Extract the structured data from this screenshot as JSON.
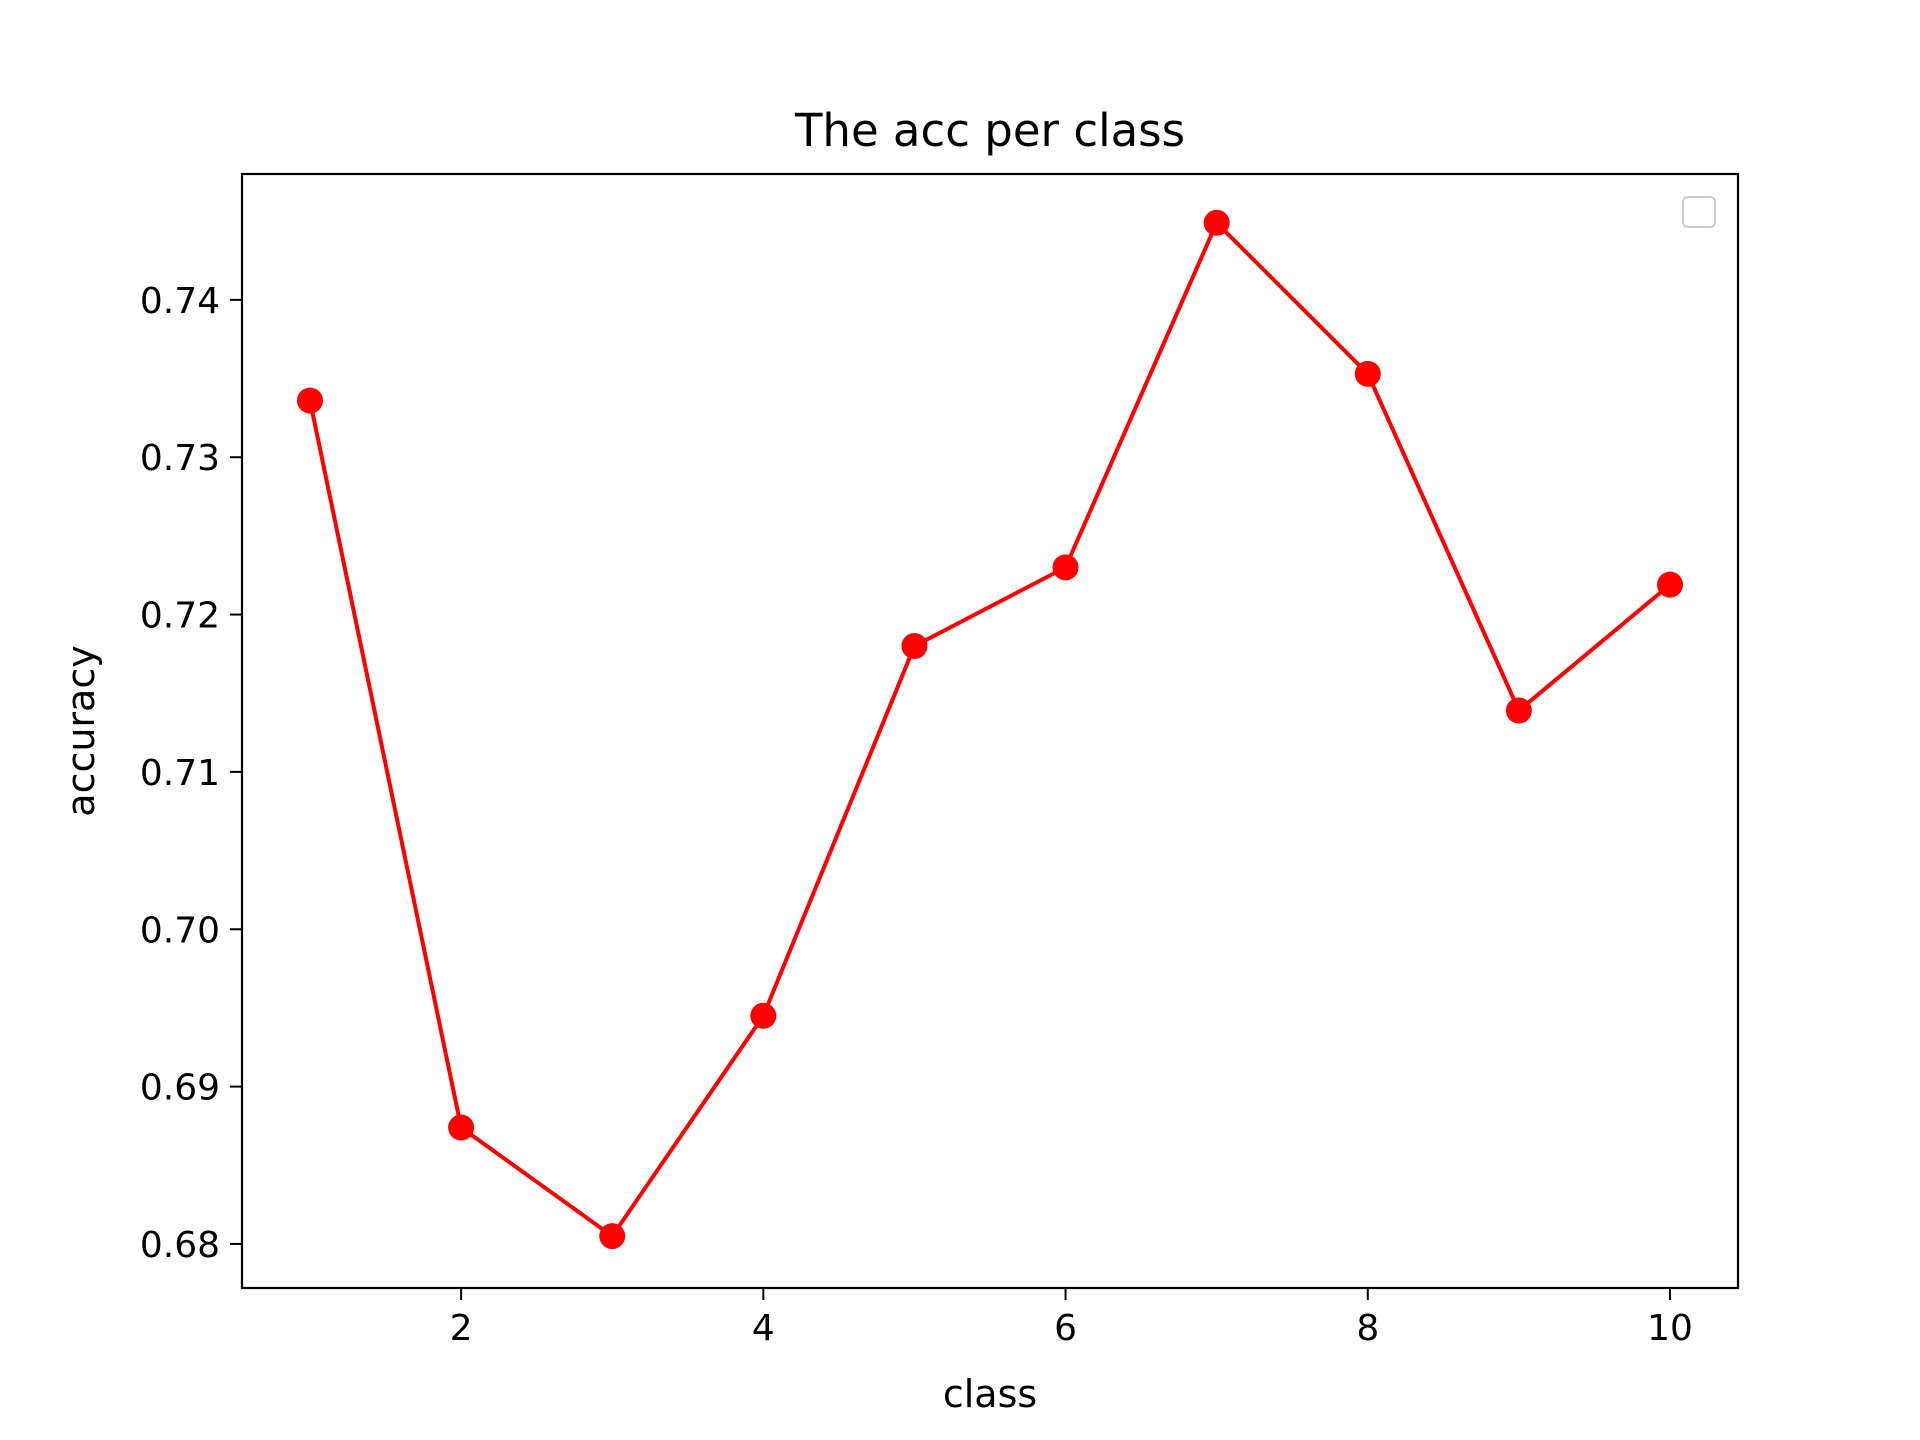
{
  "chart_data": {
    "type": "line",
    "title": "The acc per class",
    "xlabel": "class",
    "ylabel": "accuracy",
    "x": [
      1,
      2,
      3,
      4,
      5,
      6,
      7,
      8,
      9,
      10
    ],
    "series": [
      {
        "values": [
          0.7336,
          0.6874,
          0.6805,
          0.6945,
          0.718,
          0.723,
          0.7449,
          0.7353,
          0.7139,
          0.7219
        ],
        "color": "#ff0000",
        "marker": "circle"
      }
    ],
    "xlim": [
      0.55,
      10.45
    ],
    "ylim": [
      0.6772,
      0.748
    ],
    "xticks": [
      2,
      4,
      6,
      8,
      10
    ],
    "yticks": [
      0.68,
      0.69,
      0.7,
      0.71,
      0.72,
      0.73,
      0.74
    ],
    "ytick_labels": [
      "0.68",
      "0.69",
      "0.70",
      "0.71",
      "0.72",
      "0.73",
      "0.74"
    ],
    "grid": false,
    "legend": {
      "placement": "top-right",
      "entries": []
    }
  }
}
